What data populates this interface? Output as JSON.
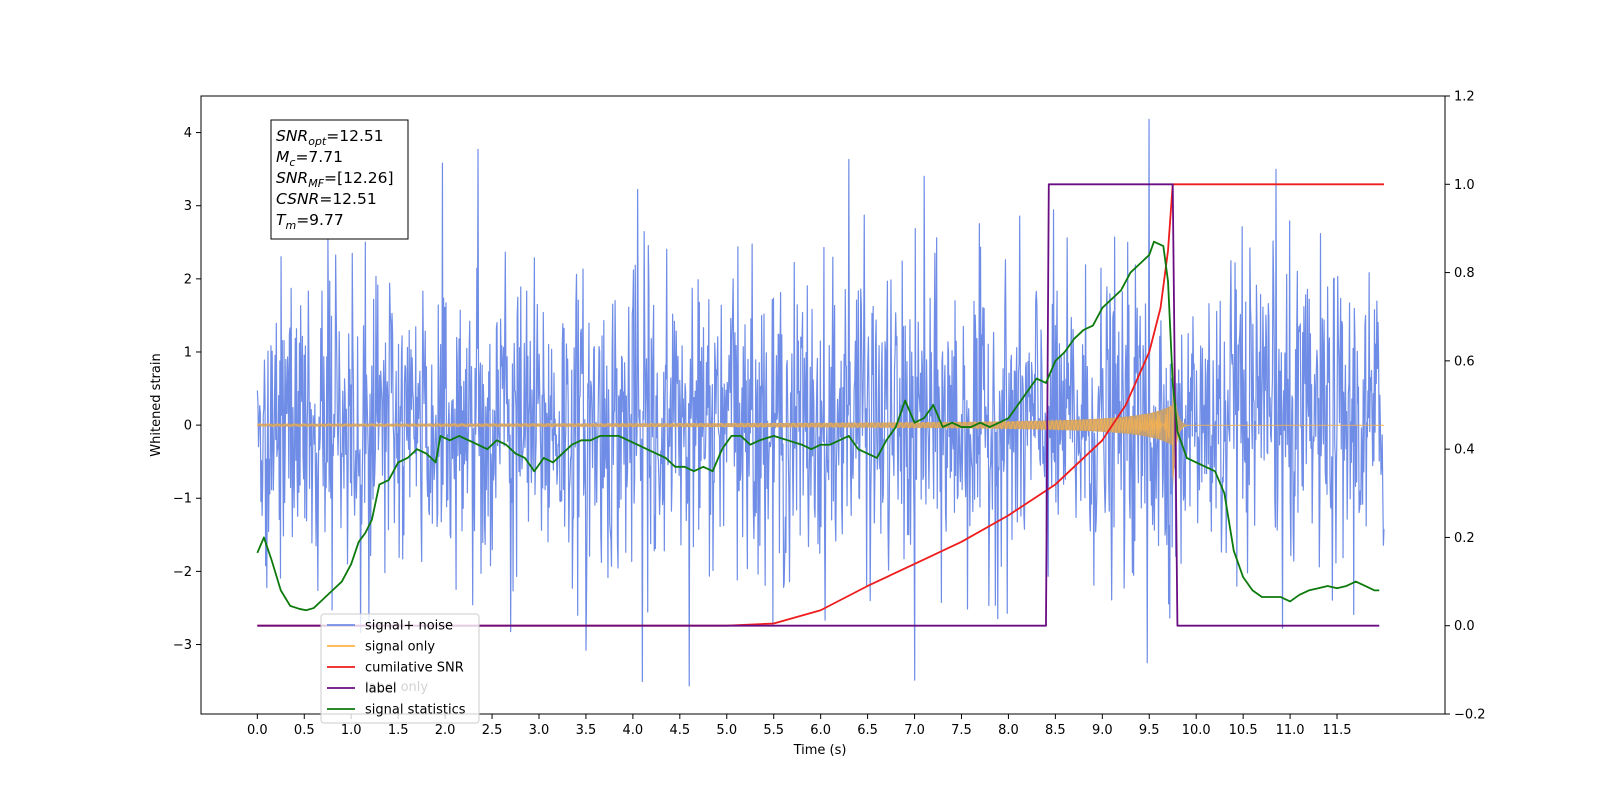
{
  "chart_data": {
    "type": "line",
    "xlabel": "Time (s)",
    "ylabel": "Whitened strain",
    "xlim": [
      -0.6,
      12.65
    ],
    "ylim_left": [
      -3.95,
      4.5
    ],
    "ylim_right": [
      -0.2,
      1.2
    ],
    "x_ticks": [
      0.0,
      0.5,
      1.0,
      1.5,
      2.0,
      2.5,
      3.0,
      3.5,
      4.0,
      4.5,
      5.0,
      5.5,
      6.0,
      6.5,
      7.0,
      7.5,
      8.0,
      8.5,
      9.0,
      9.5,
      10.0,
      10.5,
      11.0,
      11.5
    ],
    "x_tick_labels": [
      "0.0",
      "0.5",
      "1.0",
      "1.5",
      "2.0",
      "2.5",
      "3.0",
      "3.5",
      "4.0",
      "4.5",
      "5.0",
      "5.5",
      "6.0",
      "6.5",
      "7.0",
      "7.5",
      "8.0",
      "8.5",
      "9.0",
      "9.5",
      "10.0",
      "10.5",
      "11.0",
      "11.5"
    ],
    "y_left_ticks": [
      -3,
      -2,
      -1,
      0,
      1,
      2,
      3,
      4
    ],
    "y_left_tick_labels": [
      "−3",
      "−2",
      "−1",
      "0",
      "1",
      "2",
      "3",
      "4"
    ],
    "y_right_ticks": [
      -0.2,
      0.0,
      0.2,
      0.4,
      0.6,
      0.8,
      1.0,
      1.2
    ],
    "y_right_tick_labels": [
      "−0.2",
      "0.0",
      "0.2",
      "0.4",
      "0.6",
      "0.8",
      "1.0",
      "1.2"
    ],
    "series": [
      {
        "name": "signal+ noise",
        "axis": "left",
        "color": "#6f8de6",
        "description_values": "gaussian noise, std about 1, t from 0 to 12 s, peaks near 4.1 at t=9.5",
        "t_start": 0.0,
        "t_end": 12.0,
        "peaks": [
          [
            0.75,
            2.55
          ],
          [
            1.15,
            2.5
          ],
          [
            1.97,
            3.6
          ],
          [
            2.35,
            3.75
          ],
          [
            4.05,
            3.2
          ],
          [
            6.3,
            3.6
          ],
          [
            7.1,
            3.4
          ],
          [
            9.5,
            4.1
          ],
          [
            10.85,
            3.5
          ],
          [
            4.6,
            -3.55
          ],
          [
            4.1,
            -3.5
          ],
          [
            9.48,
            -3.4
          ],
          [
            7.0,
            -3.45
          ],
          [
            3.5,
            -3.1
          ]
        ]
      },
      {
        "name": "signal only",
        "axis": "left",
        "color": "#ffb347",
        "chirp_start_amplitude": 0.01,
        "chirp_peak_time": 9.75,
        "chirp_peak_amplitude": 0.95,
        "ringdown_end": 9.9,
        "t_start": 0.0,
        "t_end": 12.0
      },
      {
        "name": "cumilative SNR",
        "axis": "right",
        "color": "#ee1c1c",
        "points": [
          [
            0.0,
            0.0
          ],
          [
            4.5,
            0.0
          ],
          [
            5.0,
            0.0
          ],
          [
            5.5,
            0.005
          ],
          [
            6.0,
            0.035
          ],
          [
            6.5,
            0.09
          ],
          [
            7.0,
            0.14
          ],
          [
            7.5,
            0.19
          ],
          [
            8.0,
            0.25
          ],
          [
            8.5,
            0.32
          ],
          [
            9.0,
            0.42
          ],
          [
            9.25,
            0.5
          ],
          [
            9.5,
            0.62
          ],
          [
            9.62,
            0.72
          ],
          [
            9.7,
            0.85
          ],
          [
            9.75,
            1.0
          ],
          [
            12.0,
            1.0
          ]
        ]
      },
      {
        "name": "label",
        "axis": "right",
        "color": "#6a0d83",
        "points": [
          [
            0.0,
            0.0
          ],
          [
            8.4,
            0.0
          ],
          [
            8.43,
            1.0
          ],
          [
            9.75,
            1.0
          ],
          [
            9.8,
            0.0
          ],
          [
            11.95,
            0.0
          ]
        ]
      },
      {
        "name": "signal statistics",
        "axis": "right",
        "color": "#0c7a0c",
        "points": [
          [
            0.0,
            0.165
          ],
          [
            0.07,
            0.2
          ],
          [
            0.15,
            0.15
          ],
          [
            0.25,
            0.08
          ],
          [
            0.35,
            0.045
          ],
          [
            0.45,
            0.038
          ],
          [
            0.52,
            0.035
          ],
          [
            0.6,
            0.04
          ],
          [
            0.7,
            0.06
          ],
          [
            0.8,
            0.08
          ],
          [
            0.9,
            0.1
          ],
          [
            1.0,
            0.14
          ],
          [
            1.08,
            0.19
          ],
          [
            1.15,
            0.21
          ],
          [
            1.22,
            0.24
          ],
          [
            1.3,
            0.32
          ],
          [
            1.4,
            0.33
          ],
          [
            1.5,
            0.37
          ],
          [
            1.6,
            0.38
          ],
          [
            1.7,
            0.4
          ],
          [
            1.8,
            0.39
          ],
          [
            1.9,
            0.37
          ],
          [
            1.95,
            0.43
          ],
          [
            2.05,
            0.42
          ],
          [
            2.15,
            0.43
          ],
          [
            2.25,
            0.42
          ],
          [
            2.35,
            0.41
          ],
          [
            2.45,
            0.4
          ],
          [
            2.55,
            0.42
          ],
          [
            2.65,
            0.41
          ],
          [
            2.75,
            0.39
          ],
          [
            2.85,
            0.38
          ],
          [
            2.95,
            0.35
          ],
          [
            3.05,
            0.38
          ],
          [
            3.15,
            0.37
          ],
          [
            3.25,
            0.39
          ],
          [
            3.35,
            0.41
          ],
          [
            3.45,
            0.42
          ],
          [
            3.55,
            0.42
          ],
          [
            3.65,
            0.43
          ],
          [
            3.75,
            0.43
          ],
          [
            3.85,
            0.43
          ],
          [
            3.95,
            0.42
          ],
          [
            4.05,
            0.41
          ],
          [
            4.15,
            0.4
          ],
          [
            4.25,
            0.39
          ],
          [
            4.35,
            0.38
          ],
          [
            4.45,
            0.36
          ],
          [
            4.55,
            0.36
          ],
          [
            4.65,
            0.35
          ],
          [
            4.75,
            0.36
          ],
          [
            4.85,
            0.35
          ],
          [
            4.95,
            0.4
          ],
          [
            5.05,
            0.43
          ],
          [
            5.15,
            0.43
          ],
          [
            5.25,
            0.41
          ],
          [
            5.35,
            0.42
          ],
          [
            5.5,
            0.43
          ],
          [
            5.65,
            0.42
          ],
          [
            5.8,
            0.41
          ],
          [
            5.9,
            0.4
          ],
          [
            6.0,
            0.41
          ],
          [
            6.1,
            0.41
          ],
          [
            6.2,
            0.42
          ],
          [
            6.3,
            0.43
          ],
          [
            6.4,
            0.4
          ],
          [
            6.5,
            0.39
          ],
          [
            6.6,
            0.38
          ],
          [
            6.7,
            0.42
          ],
          [
            6.8,
            0.45
          ],
          [
            6.9,
            0.51
          ],
          [
            7.0,
            0.46
          ],
          [
            7.1,
            0.47
          ],
          [
            7.2,
            0.5
          ],
          [
            7.3,
            0.45
          ],
          [
            7.4,
            0.46
          ],
          [
            7.5,
            0.45
          ],
          [
            7.6,
            0.45
          ],
          [
            7.7,
            0.46
          ],
          [
            7.8,
            0.45
          ],
          [
            7.9,
            0.46
          ],
          [
            8.0,
            0.47
          ],
          [
            8.1,
            0.5
          ],
          [
            8.2,
            0.53
          ],
          [
            8.3,
            0.56
          ],
          [
            8.4,
            0.55
          ],
          [
            8.5,
            0.6
          ],
          [
            8.6,
            0.62
          ],
          [
            8.7,
            0.65
          ],
          [
            8.8,
            0.67
          ],
          [
            8.9,
            0.68
          ],
          [
            9.0,
            0.72
          ],
          [
            9.1,
            0.74
          ],
          [
            9.2,
            0.76
          ],
          [
            9.3,
            0.8
          ],
          [
            9.4,
            0.82
          ],
          [
            9.5,
            0.84
          ],
          [
            9.55,
            0.87
          ],
          [
            9.65,
            0.86
          ],
          [
            9.7,
            0.78
          ],
          [
            9.75,
            0.55
          ],
          [
            9.8,
            0.44
          ],
          [
            9.9,
            0.38
          ],
          [
            10.0,
            0.37
          ],
          [
            10.1,
            0.36
          ],
          [
            10.2,
            0.35
          ],
          [
            10.3,
            0.3
          ],
          [
            10.4,
            0.17
          ],
          [
            10.5,
            0.11
          ],
          [
            10.6,
            0.08
          ],
          [
            10.7,
            0.065
          ],
          [
            10.8,
            0.065
          ],
          [
            10.9,
            0.065
          ],
          [
            11.0,
            0.055
          ],
          [
            11.1,
            0.07
          ],
          [
            11.2,
            0.08
          ],
          [
            11.3,
            0.085
          ],
          [
            11.4,
            0.09
          ],
          [
            11.5,
            0.085
          ],
          [
            11.6,
            0.09
          ],
          [
            11.7,
            0.1
          ],
          [
            11.8,
            0.09
          ],
          [
            11.9,
            0.08
          ],
          [
            11.95,
            0.08
          ]
        ]
      }
    ],
    "info_box": {
      "lines": [
        {
          "main": "SNR",
          "sub": "opt",
          "value": "=12.51"
        },
        {
          "main": "M",
          "sub": "c",
          "value": "=7.71"
        },
        {
          "main": "SNR",
          "sub": "MF",
          "value": "=[12.26]"
        },
        {
          "main": "CSNR",
          "sub": "",
          "value": "=12.51"
        },
        {
          "main": "T",
          "sub": "m",
          "value": "=9.77"
        }
      ]
    },
    "legend": {
      "placement": "lower-left",
      "entries": [
        {
          "label": "signal+ noise",
          "color": "#6f8de6"
        },
        {
          "label": "signal only",
          "color": "#ffb347"
        },
        {
          "label": "cumilative SNR",
          "color": "#ee1c1c"
        },
        {
          "label": "label",
          "color": "#6a0d83"
        },
        {
          "label": "signal statistics",
          "color": "#0c7a0c"
        }
      ],
      "hidden_overlap_text": "label only"
    },
    "grid": false
  }
}
